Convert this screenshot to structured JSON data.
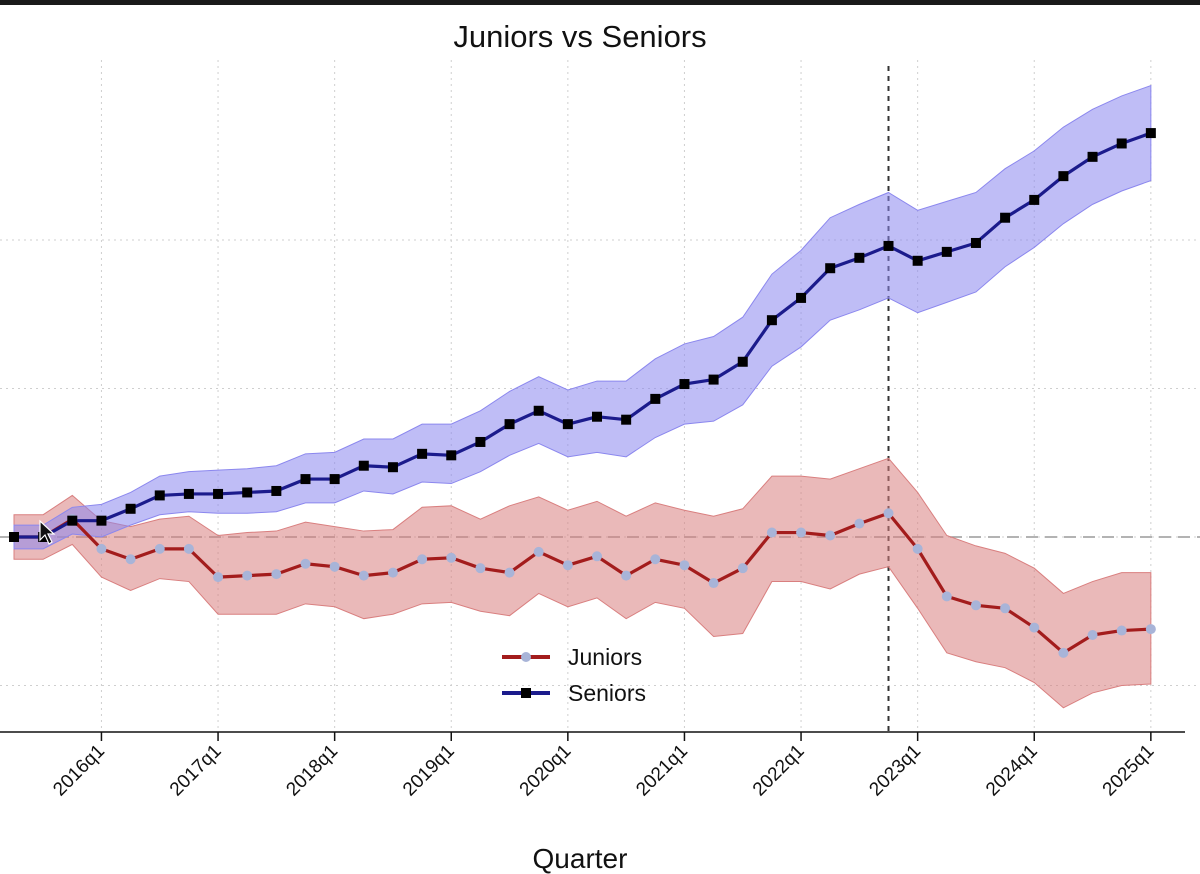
{
  "chart_data": {
    "type": "line",
    "title": "Juniors vs Seniors",
    "xlabel": "Quarter",
    "ylabel": "",
    "x_ticks": [
      "2016q1",
      "2017q1",
      "2018q1",
      "2019q1",
      "2020q1",
      "2021q1",
      "2022q1",
      "2023q1",
      "2024q1",
      "2025q1"
    ],
    "x_range": [
      0,
      40
    ],
    "ylim": [
      -1.0,
      2.3
    ],
    "y_gridlines": [
      -1.0,
      0.0,
      1.0,
      2.0
    ],
    "reference_hline": 0.0,
    "reference_vline": 30,
    "grid": true,
    "legend_position": "bottom-center",
    "series": [
      {
        "name": "Juniors",
        "color": "#a31c1c",
        "marker_color": "#a8b4d8",
        "band_color": "#d97f7f",
        "values": [
          0,
          0,
          0.12,
          -0.08,
          -0.15,
          -0.08,
          -0.08,
          -0.27,
          -0.26,
          -0.25,
          -0.18,
          -0.2,
          -0.26,
          -0.24,
          -0.15,
          -0.14,
          -0.21,
          -0.24,
          -0.1,
          -0.19,
          -0.13,
          -0.26,
          -0.15,
          -0.19,
          -0.31,
          -0.21,
          0.03,
          0.03,
          0.01,
          0.09,
          0.16,
          -0.08,
          -0.4,
          -0.46,
          -0.48,
          -0.61,
          -0.78,
          -0.66,
          -0.63,
          -0.62
        ],
        "lower": [
          -0.15,
          -0.15,
          -0.05,
          -0.27,
          -0.36,
          -0.28,
          -0.3,
          -0.52,
          -0.52,
          -0.52,
          -0.45,
          -0.47,
          -0.55,
          -0.52,
          -0.45,
          -0.44,
          -0.5,
          -0.53,
          -0.38,
          -0.47,
          -0.41,
          -0.55,
          -0.44,
          -0.48,
          -0.67,
          -0.65,
          -0.3,
          -0.3,
          -0.35,
          -0.25,
          -0.2,
          -0.48,
          -0.78,
          -0.84,
          -0.88,
          -0.98,
          -1.15,
          -1.05,
          -1.0,
          -0.99
        ],
        "upper": [
          0.15,
          0.15,
          0.28,
          0.11,
          0.07,
          0.12,
          0.14,
          0.01,
          0.03,
          0.04,
          0.1,
          0.07,
          0.04,
          0.05,
          0.2,
          0.21,
          0.12,
          0.21,
          0.27,
          0.18,
          0.24,
          0.14,
          0.23,
          0.18,
          0.14,
          0.19,
          0.41,
          0.41,
          0.39,
          0.46,
          0.53,
          0.3,
          0.01,
          -0.06,
          -0.11,
          -0.21,
          -0.38,
          -0.3,
          -0.24,
          -0.24
        ]
      },
      {
        "name": "Seniors",
        "color": "#1b1b8c",
        "marker_color": "#000000",
        "band_color": "#8b87ee",
        "values": [
          0,
          0,
          0.11,
          0.11,
          0.19,
          0.28,
          0.29,
          0.29,
          0.3,
          0.31,
          0.39,
          0.39,
          0.48,
          0.47,
          0.56,
          0.55,
          0.64,
          0.76,
          0.85,
          0.76,
          0.81,
          0.79,
          0.93,
          1.03,
          1.06,
          1.18,
          1.46,
          1.61,
          1.81,
          1.88,
          1.96,
          1.86,
          1.92,
          1.98,
          2.15,
          2.27,
          2.43,
          2.56,
          2.65,
          2.72
        ],
        "lower": [
          -0.08,
          -0.08,
          0.02,
          0.0,
          0.08,
          0.15,
          0.17,
          0.16,
          0.16,
          0.17,
          0.23,
          0.23,
          0.31,
          0.29,
          0.37,
          0.36,
          0.44,
          0.55,
          0.63,
          0.54,
          0.57,
          0.54,
          0.67,
          0.76,
          0.78,
          0.89,
          1.15,
          1.28,
          1.46,
          1.53,
          1.61,
          1.51,
          1.58,
          1.65,
          1.82,
          1.95,
          2.11,
          2.24,
          2.33,
          2.4
        ],
        "upper": [
          0.08,
          0.08,
          0.2,
          0.22,
          0.3,
          0.41,
          0.44,
          0.45,
          0.46,
          0.48,
          0.56,
          0.57,
          0.66,
          0.66,
          0.76,
          0.76,
          0.85,
          0.98,
          1.08,
          0.99,
          1.05,
          1.05,
          1.2,
          1.3,
          1.35,
          1.48,
          1.77,
          1.93,
          2.15,
          2.24,
          2.32,
          2.2,
          2.26,
          2.32,
          2.48,
          2.6,
          2.76,
          2.88,
          2.97,
          3.04
        ]
      }
    ]
  }
}
